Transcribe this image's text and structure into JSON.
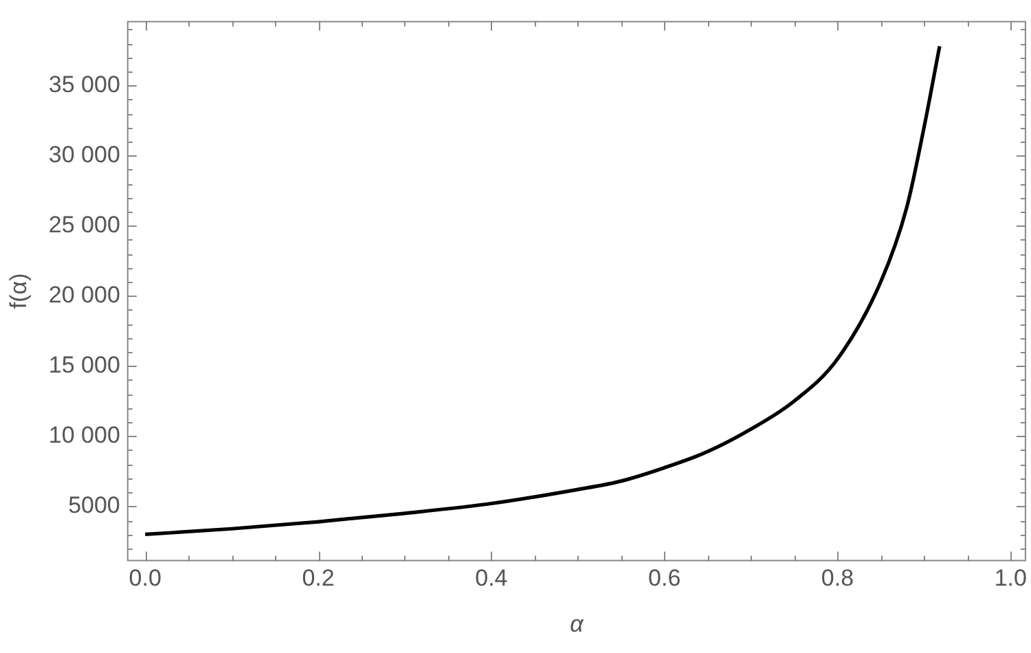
{
  "chart_data": {
    "type": "line",
    "xlabel": "α",
    "ylabel": "f(α)",
    "x": [
      0,
      0.1,
      0.2,
      0.3,
      0.4,
      0.5,
      0.55,
      0.6,
      0.65,
      0.7,
      0.75,
      0.8,
      0.85,
      0.88,
      0.9,
      0.918
    ],
    "series": [
      {
        "color": "#000000",
        "values": [
          3000,
          3400,
          3900,
          4500,
          5200,
          6200,
          6800,
          7750,
          8900,
          10500,
          12500,
          15500,
          21000,
          26300,
          32000,
          37800
        ]
      }
    ],
    "xlim": [
      -0.021,
      1.018
    ],
    "xticks": [
      {
        "value": 0,
        "label": "0.0"
      },
      {
        "value": 0.05,
        "label": null
      },
      {
        "value": 0.1,
        "label": null
      },
      {
        "value": 0.15,
        "label": null
      },
      {
        "value": 0.2,
        "label": "0.2"
      },
      {
        "value": 0.25,
        "label": null
      },
      {
        "value": 0.3,
        "label": null
      },
      {
        "value": 0.35,
        "label": null
      },
      {
        "value": 0.4,
        "label": "0.4"
      },
      {
        "value": 0.45,
        "label": null
      },
      {
        "value": 0.5,
        "label": null
      },
      {
        "value": 0.55,
        "label": null
      },
      {
        "value": 0.6,
        "label": "0.6"
      },
      {
        "value": 0.65,
        "label": null
      },
      {
        "value": 0.7,
        "label": null
      },
      {
        "value": 0.75,
        "label": null
      },
      {
        "value": 0.8,
        "label": "0.8"
      },
      {
        "value": 0.85,
        "label": null
      },
      {
        "value": 0.9,
        "label": null
      },
      {
        "value": 0.95,
        "label": null
      },
      {
        "value": 1,
        "label": "1.0"
      }
    ],
    "ylim": [
      1090,
      39600
    ],
    "yticks": [
      {
        "value": 2000,
        "label": null
      },
      {
        "value": 3000,
        "label": null
      },
      {
        "value": 4000,
        "label": null
      },
      {
        "value": 5000,
        "label": "5000"
      },
      {
        "value": 6000,
        "label": null
      },
      {
        "value": 7000,
        "label": null
      },
      {
        "value": 8000,
        "label": null
      },
      {
        "value": 9000,
        "label": null
      },
      {
        "value": 10000,
        "label": "10 000"
      },
      {
        "value": 11000,
        "label": null
      },
      {
        "value": 12000,
        "label": null
      },
      {
        "value": 13000,
        "label": null
      },
      {
        "value": 14000,
        "label": null
      },
      {
        "value": 15000,
        "label": "15 000"
      },
      {
        "value": 16000,
        "label": null
      },
      {
        "value": 17000,
        "label": null
      },
      {
        "value": 18000,
        "label": null
      },
      {
        "value": 19000,
        "label": null
      },
      {
        "value": 20000,
        "label": "20 000"
      },
      {
        "value": 21000,
        "label": null
      },
      {
        "value": 22000,
        "label": null
      },
      {
        "value": 23000,
        "label": null
      },
      {
        "value": 24000,
        "label": null
      },
      {
        "value": 25000,
        "label": "25 000"
      },
      {
        "value": 26000,
        "label": null
      },
      {
        "value": 27000,
        "label": null
      },
      {
        "value": 28000,
        "label": null
      },
      {
        "value": 29000,
        "label": null
      },
      {
        "value": 30000,
        "label": "30 000"
      },
      {
        "value": 31000,
        "label": null
      },
      {
        "value": 32000,
        "label": null
      },
      {
        "value": 33000,
        "label": null
      },
      {
        "value": 34000,
        "label": null
      },
      {
        "value": 35000,
        "label": "35 000"
      },
      {
        "value": 36000,
        "label": null
      },
      {
        "value": 37000,
        "label": null
      },
      {
        "value": 38000,
        "label": null
      },
      {
        "value": 39000,
        "label": null
      }
    ],
    "grid": false,
    "legend": false,
    "marker": "none",
    "line_style": "solid"
  }
}
